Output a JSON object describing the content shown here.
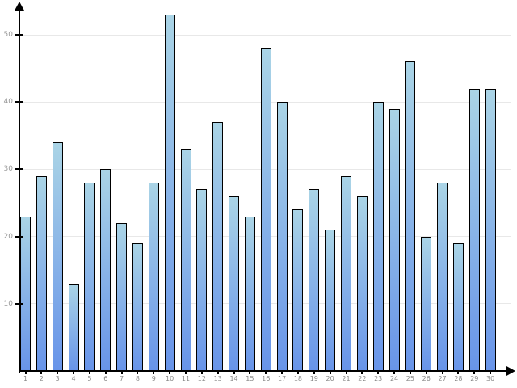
{
  "chart_data": {
    "type": "bar",
    "title": "",
    "xlabel": "",
    "ylabel": "",
    "categories": [
      "1",
      "2",
      "3",
      "4",
      "5",
      "6",
      "7",
      "8",
      "9",
      "10",
      "11",
      "12",
      "13",
      "14",
      "15",
      "16",
      "17",
      "18",
      "19",
      "20",
      "21",
      "22",
      "23",
      "24",
      "25",
      "26",
      "27",
      "28",
      "29",
      "30"
    ],
    "values": [
      23,
      29,
      34,
      13,
      28,
      30,
      22,
      19,
      28,
      53,
      33,
      27,
      37,
      26,
      23,
      48,
      40,
      24,
      27,
      21,
      29,
      26,
      40,
      39,
      46,
      20,
      28,
      19,
      42,
      42
    ],
    "y_ticks": [
      10,
      20,
      30,
      40,
      50
    ],
    "ylim": [
      0,
      55
    ],
    "grid": true,
    "legend": "none",
    "colors": {
      "bar_gradient_top": "#aad4e6",
      "bar_gradient_bottom": "#6894e9",
      "bar_border": "#000000",
      "axis": "#000000",
      "gridline": "#e8e8e8",
      "y_tick_label": "#999999",
      "x_tick_label": "#888888",
      "background": "#ffffff"
    }
  }
}
